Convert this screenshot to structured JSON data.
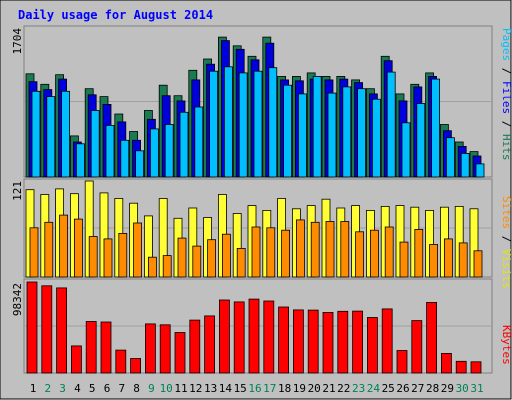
{
  "chart_data": [
    {
      "type": "bar",
      "title": "Daily usage for August 2014",
      "categories": [
        "1",
        "2",
        "3",
        "4",
        "5",
        "6",
        "7",
        "8",
        "9",
        "10",
        "11",
        "12",
        "13",
        "14",
        "15",
        "16",
        "17",
        "18",
        "19",
        "20",
        "21",
        "22",
        "23",
        "24",
        "25",
        "26",
        "27",
        "28",
        "29",
        "30",
        "31"
      ],
      "weekend_days": [
        "2",
        "3",
        "9",
        "10",
        "16",
        "17",
        "23",
        "24",
        "30",
        "31"
      ],
      "ymax_label": "1704",
      "ylim": [
        0,
        1704
      ],
      "legend": [
        "Pages",
        "Files",
        "Hits"
      ],
      "series": [
        {
          "name": "Hits",
          "values": [
            1180,
            1060,
            1170,
            470,
            1010,
            920,
            720,
            520,
            760,
            1050,
            930,
            1220,
            1350,
            1600,
            1500,
            1380,
            1600,
            1150,
            1150,
            1190,
            1150,
            1150,
            1110,
            1010,
            1380,
            950,
            1060,
            1190,
            600,
            400,
            290
          ]
        },
        {
          "name": "Files",
          "values": [
            1090,
            1000,
            1120,
            400,
            940,
            830,
            630,
            420,
            660,
            930,
            870,
            1110,
            1290,
            1560,
            1460,
            1340,
            1530,
            1110,
            1100,
            1120,
            1110,
            1120,
            1080,
            950,
            1330,
            870,
            1030,
            1150,
            530,
            350,
            240
          ]
        },
        {
          "name": "Pages",
          "values": [
            980,
            920,
            980,
            380,
            760,
            590,
            420,
            300,
            550,
            600,
            740,
            800,
            1210,
            1260,
            1190,
            1210,
            1250,
            1050,
            950,
            1150,
            960,
            1030,
            1010,
            890,
            1200,
            620,
            840,
            1120,
            450,
            270,
            150
          ]
        }
      ]
    },
    {
      "type": "bar",
      "ymax_label": "121",
      "ylim": [
        0,
        121
      ],
      "legend": [
        "Sites",
        "Visits"
      ],
      "series": [
        {
          "name": "Visits",
          "values": [
            110,
            104,
            111,
            105,
            121,
            106,
            99,
            93,
            77,
            99,
            74,
            87,
            75,
            104,
            80,
            90,
            84,
            99,
            86,
            90,
            98,
            87,
            90,
            84,
            89,
            90,
            88,
            84,
            88,
            89,
            86
          ]
        },
        {
          "name": "Sites",
          "values": [
            62,
            69,
            78,
            73,
            51,
            48,
            55,
            68,
            25,
            27,
            49,
            39,
            47,
            54,
            36,
            63,
            62,
            59,
            72,
            69,
            70,
            70,
            57,
            59,
            63,
            44,
            60,
            41,
            48,
            43,
            33
          ]
        }
      ]
    },
    {
      "type": "bar",
      "ymax_label": "98342",
      "ylim": [
        0,
        98342
      ],
      "legend": [
        "KBytes"
      ],
      "series": [
        {
          "name": "KBytes",
          "values": [
            97300,
            93200,
            91000,
            29000,
            55000,
            54500,
            24500,
            15500,
            52500,
            51500,
            43300,
            56500,
            61000,
            78000,
            76000,
            79000,
            77000,
            70500,
            67500,
            67200,
            64800,
            66000,
            66200,
            59300,
            68500,
            24000,
            56000,
            75500,
            21000,
            12500,
            12000
          ]
        }
      ]
    }
  ]
}
